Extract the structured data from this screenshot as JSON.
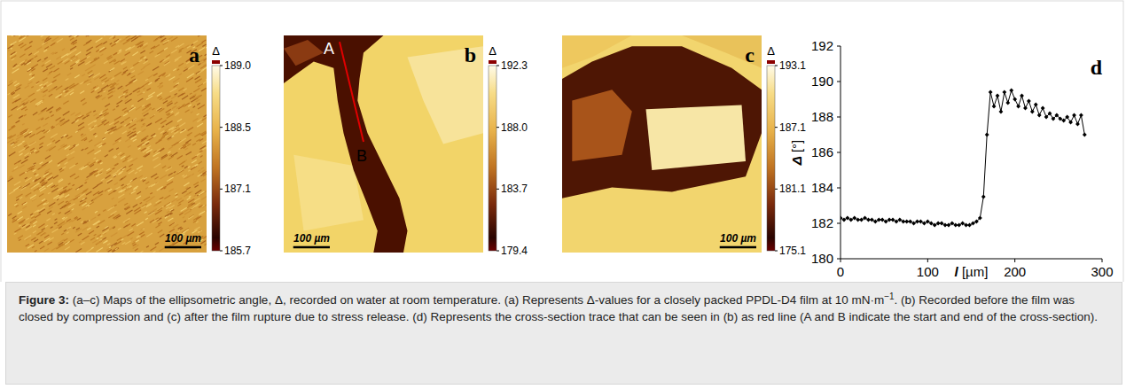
{
  "maps": [
    {
      "letter": "a",
      "colorbar": {
        "title": "Δ",
        "ticks": [
          {
            "value": 189,
            "label": "189.0"
          },
          188.5,
          187.1,
          185.7
        ]
      },
      "scale_bar": "100 µm"
    },
    {
      "letter": "b",
      "colorbar": {
        "title": "Δ",
        "ticks": [
          192.3,
          {
            "value": 188,
            "label": "188.0"
          },
          183.7,
          179.4
        ]
      },
      "scale_bar": "100 µm",
      "cross_section": {
        "start": "A",
        "end": "B"
      }
    },
    {
      "letter": "c",
      "colorbar": {
        "title": "Δ",
        "ticks": [
          193.1,
          187.1,
          181.1,
          175.1
        ]
      },
      "scale_bar": "100 µm"
    }
  ],
  "chart_data": {
    "type": "line",
    "letter": "d",
    "x_label": "l [µm]",
    "y_label": "Δ [°]",
    "x": [
      0,
      4,
      8,
      12,
      16,
      20,
      24,
      28,
      32,
      36,
      40,
      44,
      48,
      52,
      56,
      60,
      64,
      68,
      72,
      76,
      80,
      84,
      88,
      92,
      96,
      100,
      104,
      108,
      112,
      116,
      120,
      124,
      128,
      132,
      136,
      140,
      144,
      148,
      152,
      156,
      160,
      164,
      168,
      172,
      176,
      180,
      184,
      188,
      192,
      196,
      200,
      204,
      208,
      212,
      216,
      220,
      224,
      228,
      232,
      236,
      240,
      244,
      248,
      252,
      256,
      260,
      264,
      268,
      272,
      276,
      280
    ],
    "values": [
      182.3,
      182.2,
      182.3,
      182.2,
      182.3,
      182.2,
      182.2,
      182.3,
      182.2,
      182.2,
      182.1,
      182.2,
      182.2,
      182.1,
      182.2,
      182.2,
      182.1,
      182.2,
      182.1,
      182.1,
      182.1,
      182.0,
      182.1,
      182.1,
      182.0,
      182.1,
      182.0,
      181.9,
      182.0,
      182.0,
      181.9,
      181.9,
      182.0,
      181.9,
      181.9,
      182.0,
      181.9,
      181.9,
      182.0,
      182.1,
      182.3,
      183.5,
      187.0,
      189.4,
      188.6,
      189.2,
      188.3,
      189.4,
      188.8,
      189.5,
      189.0,
      188.6,
      189.2,
      188.5,
      188.9,
      188.3,
      188.7,
      188.1,
      188.5,
      188.0,
      188.2,
      187.9,
      188.1,
      187.9,
      187.8,
      188.0,
      187.7,
      188.1,
      187.6,
      188.1,
      187.0
    ],
    "color": "#000000",
    "marker": "diamond",
    "xlim": [
      0,
      300
    ],
    "xticks": [
      0,
      100,
      200,
      300
    ],
    "ylim": [
      180,
      192
    ],
    "yticks": [
      180,
      182,
      184,
      186,
      188,
      190,
      192
    ]
  },
  "caption": {
    "label": "Figure 3:",
    "text": [
      "(a–c) Maps of the ellipsometric angle, Δ, recorded on water at room temperature. (a) Represents Δ-values for a closely packed PPDL-D4 film at 10 mN·m",
      {
        "sup": "−1"
      },
      ". (b) Recorded before the film was closed by compression and (c) after the film rupture due to stress release. (d) Represents the cross-section trace that can be seen in (b) as red line (A and B indicate the start and end of the cross-section)."
    ]
  }
}
